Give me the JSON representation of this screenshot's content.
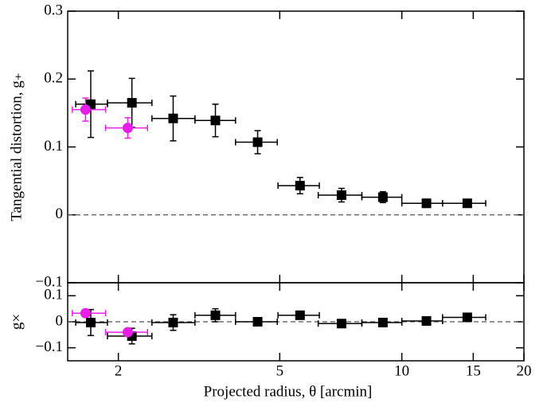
{
  "chart_data": [
    {
      "type": "scatter",
      "y_label": "Tangential distortion, g₊",
      "log_x": true,
      "xlim": [
        1.5,
        20
      ],
      "ylim": [
        -0.1,
        0.3
      ],
      "xticks": [
        2,
        5,
        10,
        15,
        20
      ],
      "yticks": [
        {
          "value": -0.1,
          "label": "−0.1"
        },
        0,
        0.1,
        0.2,
        0.3
      ],
      "reference_line": 0,
      "series": [
        {
          "marker": "square",
          "color": "#000000",
          "x": [
            1.71,
            2.16,
            2.73,
            3.47,
            4.41,
            5.61,
            7.1,
            8.98,
            11.5,
            14.5
          ],
          "x_lo": [
            1.57,
            1.88,
            2.42,
            3.09,
            3.89,
            4.95,
            6.22,
            7.97,
            10,
            12.6
          ],
          "x_hi": [
            1.88,
            2.42,
            3.09,
            3.89,
            4.93,
            6.26,
            7.97,
            10,
            12.6,
            16.1
          ],
          "values": [
            0.163,
            0.165,
            0.142,
            0.139,
            0.107,
            0.043,
            0.029,
            0.026,
            0.017,
            0.017
          ],
          "y_err": [
            0.049,
            0.036,
            0.033,
            0.024,
            0.017,
            0.012,
            0.01,
            0.008,
            0.006,
            0.005
          ]
        },
        {
          "marker": "circle",
          "color": "#e81ee8",
          "x": [
            1.66,
            2.11
          ],
          "x_lo": [
            1.54,
            1.86
          ],
          "x_hi": [
            1.86,
            2.36
          ],
          "values": [
            0.155,
            0.128
          ],
          "y_err": [
            0.017,
            0.015
          ]
        }
      ]
    },
    {
      "type": "scatter",
      "x_label": "Projected radius, θ [arcmin]",
      "y_label": "g×",
      "log_x": true,
      "xlim": [
        1.5,
        20
      ],
      "ylim": [
        -0.15,
        0.15
      ],
      "xticks": [
        2,
        5,
        10,
        15,
        20
      ],
      "yticks": [
        {
          "value": -0.1,
          "label": "−0.1"
        },
        0,
        0.1
      ],
      "reference_line": 0,
      "series": [
        {
          "marker": "square",
          "color": "#000000",
          "x": [
            1.71,
            2.16,
            2.73,
            3.47,
            4.41,
            5.61,
            7.1,
            8.98,
            11.5,
            14.5
          ],
          "x_lo": [
            1.57,
            1.88,
            2.42,
            3.09,
            3.89,
            4.95,
            6.22,
            7.97,
            10,
            12.6
          ],
          "x_hi": [
            1.88,
            2.42,
            3.09,
            3.89,
            4.93,
            6.26,
            7.97,
            10,
            12.6,
            16.1
          ],
          "values": [
            -0.003,
            -0.055,
            -0.003,
            0.025,
            0,
            0.025,
            -0.007,
            -0.003,
            0.003,
            0.017
          ],
          "y_err": [
            0.05,
            0.03,
            0.03,
            0.025,
            0.01,
            0.01,
            0.008,
            0.008,
            0.006,
            0.005
          ]
        },
        {
          "marker": "circle",
          "color": "#e81ee8",
          "x": [
            1.66,
            2.11
          ],
          "x_lo": [
            1.54,
            1.86
          ],
          "x_hi": [
            1.86,
            2.36
          ],
          "values": [
            0.033,
            -0.04
          ],
          "y_err": [
            0.01,
            0.01
          ]
        }
      ]
    }
  ]
}
